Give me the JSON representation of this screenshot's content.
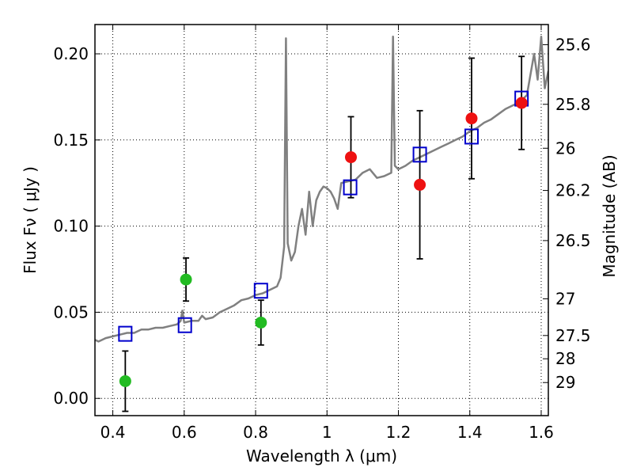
{
  "chart_data": {
    "type": "scatter",
    "xlabel": "Wavelength  λ (μm)",
    "ylabel": "Flux  Fν  ( μJy )",
    "ylabel_right": "Magnitude (AB)",
    "xlim": [
      0.35,
      1.62
    ],
    "ylim": [
      -0.01,
      0.217
    ],
    "x_ticks": [
      0.4,
      0.6,
      0.8,
      1.0,
      1.2,
      1.4,
      1.6
    ],
    "x_tick_labels": [
      "0.4",
      "0.6",
      "0.8",
      "1",
      "1.2",
      "1.4",
      "1.6"
    ],
    "y_ticks": [
      0.0,
      0.05,
      0.1,
      0.15,
      0.2
    ],
    "y_tick_labels": [
      "0.00",
      "0.05",
      "0.10",
      "0.15",
      "0.20"
    ],
    "right_ticks": [
      {
        "label": "25.6",
        "flux": 0.2053
      },
      {
        "label": "25.8",
        "flux": 0.1707
      },
      {
        "label": "26",
        "flux": 0.1452
      },
      {
        "label": "26.2",
        "flux": 0.1207
      },
      {
        "label": "26.5",
        "flux": 0.0916
      },
      {
        "label": "27",
        "flux": 0.0578
      },
      {
        "label": "27.5",
        "flux": 0.0365
      },
      {
        "label": "28",
        "flux": 0.023
      },
      {
        "label": "29",
        "flux": 0.0092
      }
    ],
    "grid": true,
    "series": [
      {
        "type": "line",
        "color": "#808080",
        "points": [
          [
            0.35,
            0.034
          ],
          [
            0.36,
            0.033
          ],
          [
            0.38,
            0.035
          ],
          [
            0.4,
            0.036
          ],
          [
            0.42,
            0.037
          ],
          [
            0.44,
            0.038
          ],
          [
            0.46,
            0.038
          ],
          [
            0.48,
            0.04
          ],
          [
            0.5,
            0.04
          ],
          [
            0.52,
            0.041
          ],
          [
            0.54,
            0.041
          ],
          [
            0.56,
            0.042
          ],
          [
            0.58,
            0.043
          ],
          [
            0.59,
            0.045
          ],
          [
            0.595,
            0.051
          ],
          [
            0.6,
            0.044
          ],
          [
            0.62,
            0.045
          ],
          [
            0.64,
            0.045
          ],
          [
            0.65,
            0.048
          ],
          [
            0.66,
            0.046
          ],
          [
            0.68,
            0.047
          ],
          [
            0.7,
            0.05
          ],
          [
            0.72,
            0.052
          ],
          [
            0.74,
            0.054
          ],
          [
            0.76,
            0.057
          ],
          [
            0.78,
            0.058
          ],
          [
            0.8,
            0.06
          ],
          [
            0.82,
            0.061
          ],
          [
            0.84,
            0.063
          ],
          [
            0.86,
            0.065
          ],
          [
            0.87,
            0.07
          ],
          [
            0.88,
            0.088
          ],
          [
            0.885,
            0.209
          ],
          [
            0.89,
            0.09
          ],
          [
            0.9,
            0.08
          ],
          [
            0.91,
            0.085
          ],
          [
            0.92,
            0.1
          ],
          [
            0.93,
            0.11
          ],
          [
            0.94,
            0.095
          ],
          [
            0.95,
            0.12
          ],
          [
            0.96,
            0.1
          ],
          [
            0.97,
            0.115
          ],
          [
            0.98,
            0.12
          ],
          [
            0.99,
            0.123
          ],
          [
            1.0,
            0.122
          ],
          [
            1.01,
            0.12
          ],
          [
            1.02,
            0.116
          ],
          [
            1.03,
            0.11
          ],
          [
            1.04,
            0.125
          ],
          [
            1.06,
            0.126
          ],
          [
            1.08,
            0.127
          ],
          [
            1.1,
            0.131
          ],
          [
            1.12,
            0.133
          ],
          [
            1.14,
            0.128
          ],
          [
            1.16,
            0.129
          ],
          [
            1.18,
            0.131
          ],
          [
            1.185,
            0.21
          ],
          [
            1.19,
            0.135
          ],
          [
            1.2,
            0.133
          ],
          [
            1.22,
            0.135
          ],
          [
            1.24,
            0.138
          ],
          [
            1.26,
            0.14
          ],
          [
            1.28,
            0.142
          ],
          [
            1.3,
            0.144
          ],
          [
            1.32,
            0.146
          ],
          [
            1.34,
            0.148
          ],
          [
            1.36,
            0.15
          ],
          [
            1.38,
            0.152
          ],
          [
            1.4,
            0.155
          ],
          [
            1.42,
            0.157
          ],
          [
            1.44,
            0.16
          ],
          [
            1.46,
            0.162
          ],
          [
            1.48,
            0.165
          ],
          [
            1.5,
            0.168
          ],
          [
            1.52,
            0.17
          ],
          [
            1.54,
            0.172
          ],
          [
            1.56,
            0.176
          ],
          [
            1.58,
            0.2
          ],
          [
            1.59,
            0.185
          ],
          [
            1.6,
            0.21
          ],
          [
            1.61,
            0.18
          ],
          [
            1.62,
            0.19
          ]
        ]
      },
      {
        "type": "marker-square",
        "color": "#0000cc",
        "points": [
          [
            0.435,
            0.0375
          ],
          [
            0.602,
            0.0425
          ],
          [
            0.815,
            0.0625
          ],
          [
            1.065,
            0.1225
          ],
          [
            1.26,
            0.1415
          ],
          [
            1.405,
            0.152
          ],
          [
            1.545,
            0.174
          ]
        ]
      },
      {
        "type": "marker-circle",
        "color": "#22bb22",
        "points": [
          [
            0.435,
            0.01,
            0.0175
          ],
          [
            0.605,
            0.069,
            0.0125
          ],
          [
            0.815,
            0.044,
            0.013
          ]
        ]
      },
      {
        "type": "marker-circle",
        "color": "#ee1111",
        "points": [
          [
            1.067,
            0.14,
            0.0235
          ],
          [
            1.26,
            0.124,
            0.043
          ],
          [
            1.405,
            0.1625,
            0.035
          ],
          [
            1.545,
            0.1715,
            0.027
          ]
        ]
      }
    ]
  }
}
